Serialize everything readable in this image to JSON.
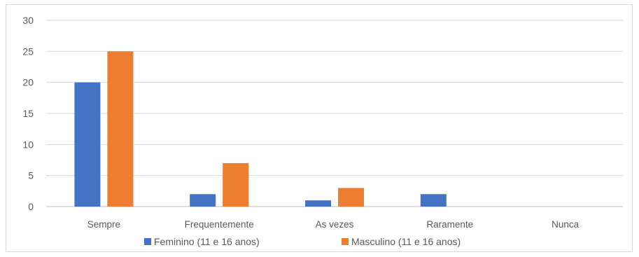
{
  "chart_data": {
    "type": "bar",
    "categories": [
      "Sempre",
      "Frequentemente",
      "As vezes",
      "Raramente",
      "Nunca"
    ],
    "series": [
      {
        "name": "Feminino (11 e 16 anos)",
        "values": [
          20,
          2,
          1,
          2,
          0
        ],
        "color": "#4472c4"
      },
      {
        "name": "Masculino (11 e 16 anos)",
        "values": [
          25,
          7,
          3,
          0,
          0
        ],
        "color": "#ed7d31"
      }
    ],
    "yticks": [
      0,
      5,
      10,
      15,
      20,
      25,
      30
    ],
    "ylim": [
      0,
      30
    ],
    "grid": true,
    "legend_position": "bottom",
    "title": "",
    "xlabel": "",
    "ylabel": ""
  }
}
